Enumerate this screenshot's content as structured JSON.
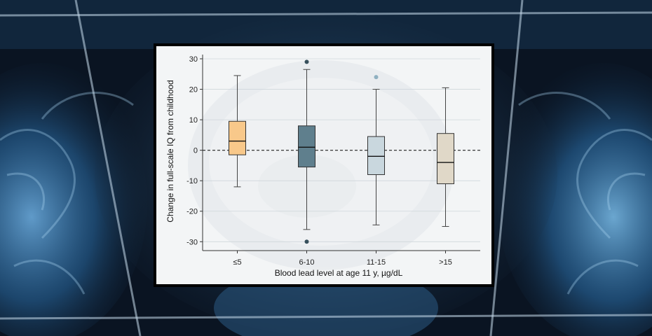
{
  "chart_data": {
    "type": "box",
    "xlabel": "Blood lead level at age 11 y, µg/dL",
    "ylabel": "Change in full-scale IQ from childhood",
    "ylim": [
      -32,
      30
    ],
    "yticks": [
      30,
      20,
      10,
      0,
      -10,
      -20,
      -30
    ],
    "reference_line": 0,
    "grid": true,
    "categories": [
      "≤5",
      "6-10",
      "11-15",
      ">15"
    ],
    "boxes": [
      {
        "category": "≤5",
        "whisker_low": -12,
        "q1": -1.5,
        "median": 3,
        "q3": 9.5,
        "whisker_high": 24.5,
        "outliers": [],
        "color": "#f8c88a"
      },
      {
        "category": "6-10",
        "whisker_low": -26,
        "q1": -5.5,
        "median": 1,
        "q3": 8,
        "whisker_high": 26.5,
        "outliers": [
          29,
          -30
        ],
        "color": "#5f7f8d"
      },
      {
        "category": "11-15",
        "whisker_low": -24.5,
        "q1": -8,
        "median": -2,
        "q3": 4.5,
        "whisker_high": 20,
        "outliers": [
          24
        ],
        "color": "#c9d7de"
      },
      {
        "category": ">15",
        "whisker_low": -25,
        "q1": -11,
        "median": -4,
        "q3": 5.5,
        "whisker_high": 20.5,
        "outliers": [],
        "color": "#e0d8c8"
      }
    ],
    "outlier_colors": [
      "#37505c",
      "#8fb0c0"
    ]
  }
}
